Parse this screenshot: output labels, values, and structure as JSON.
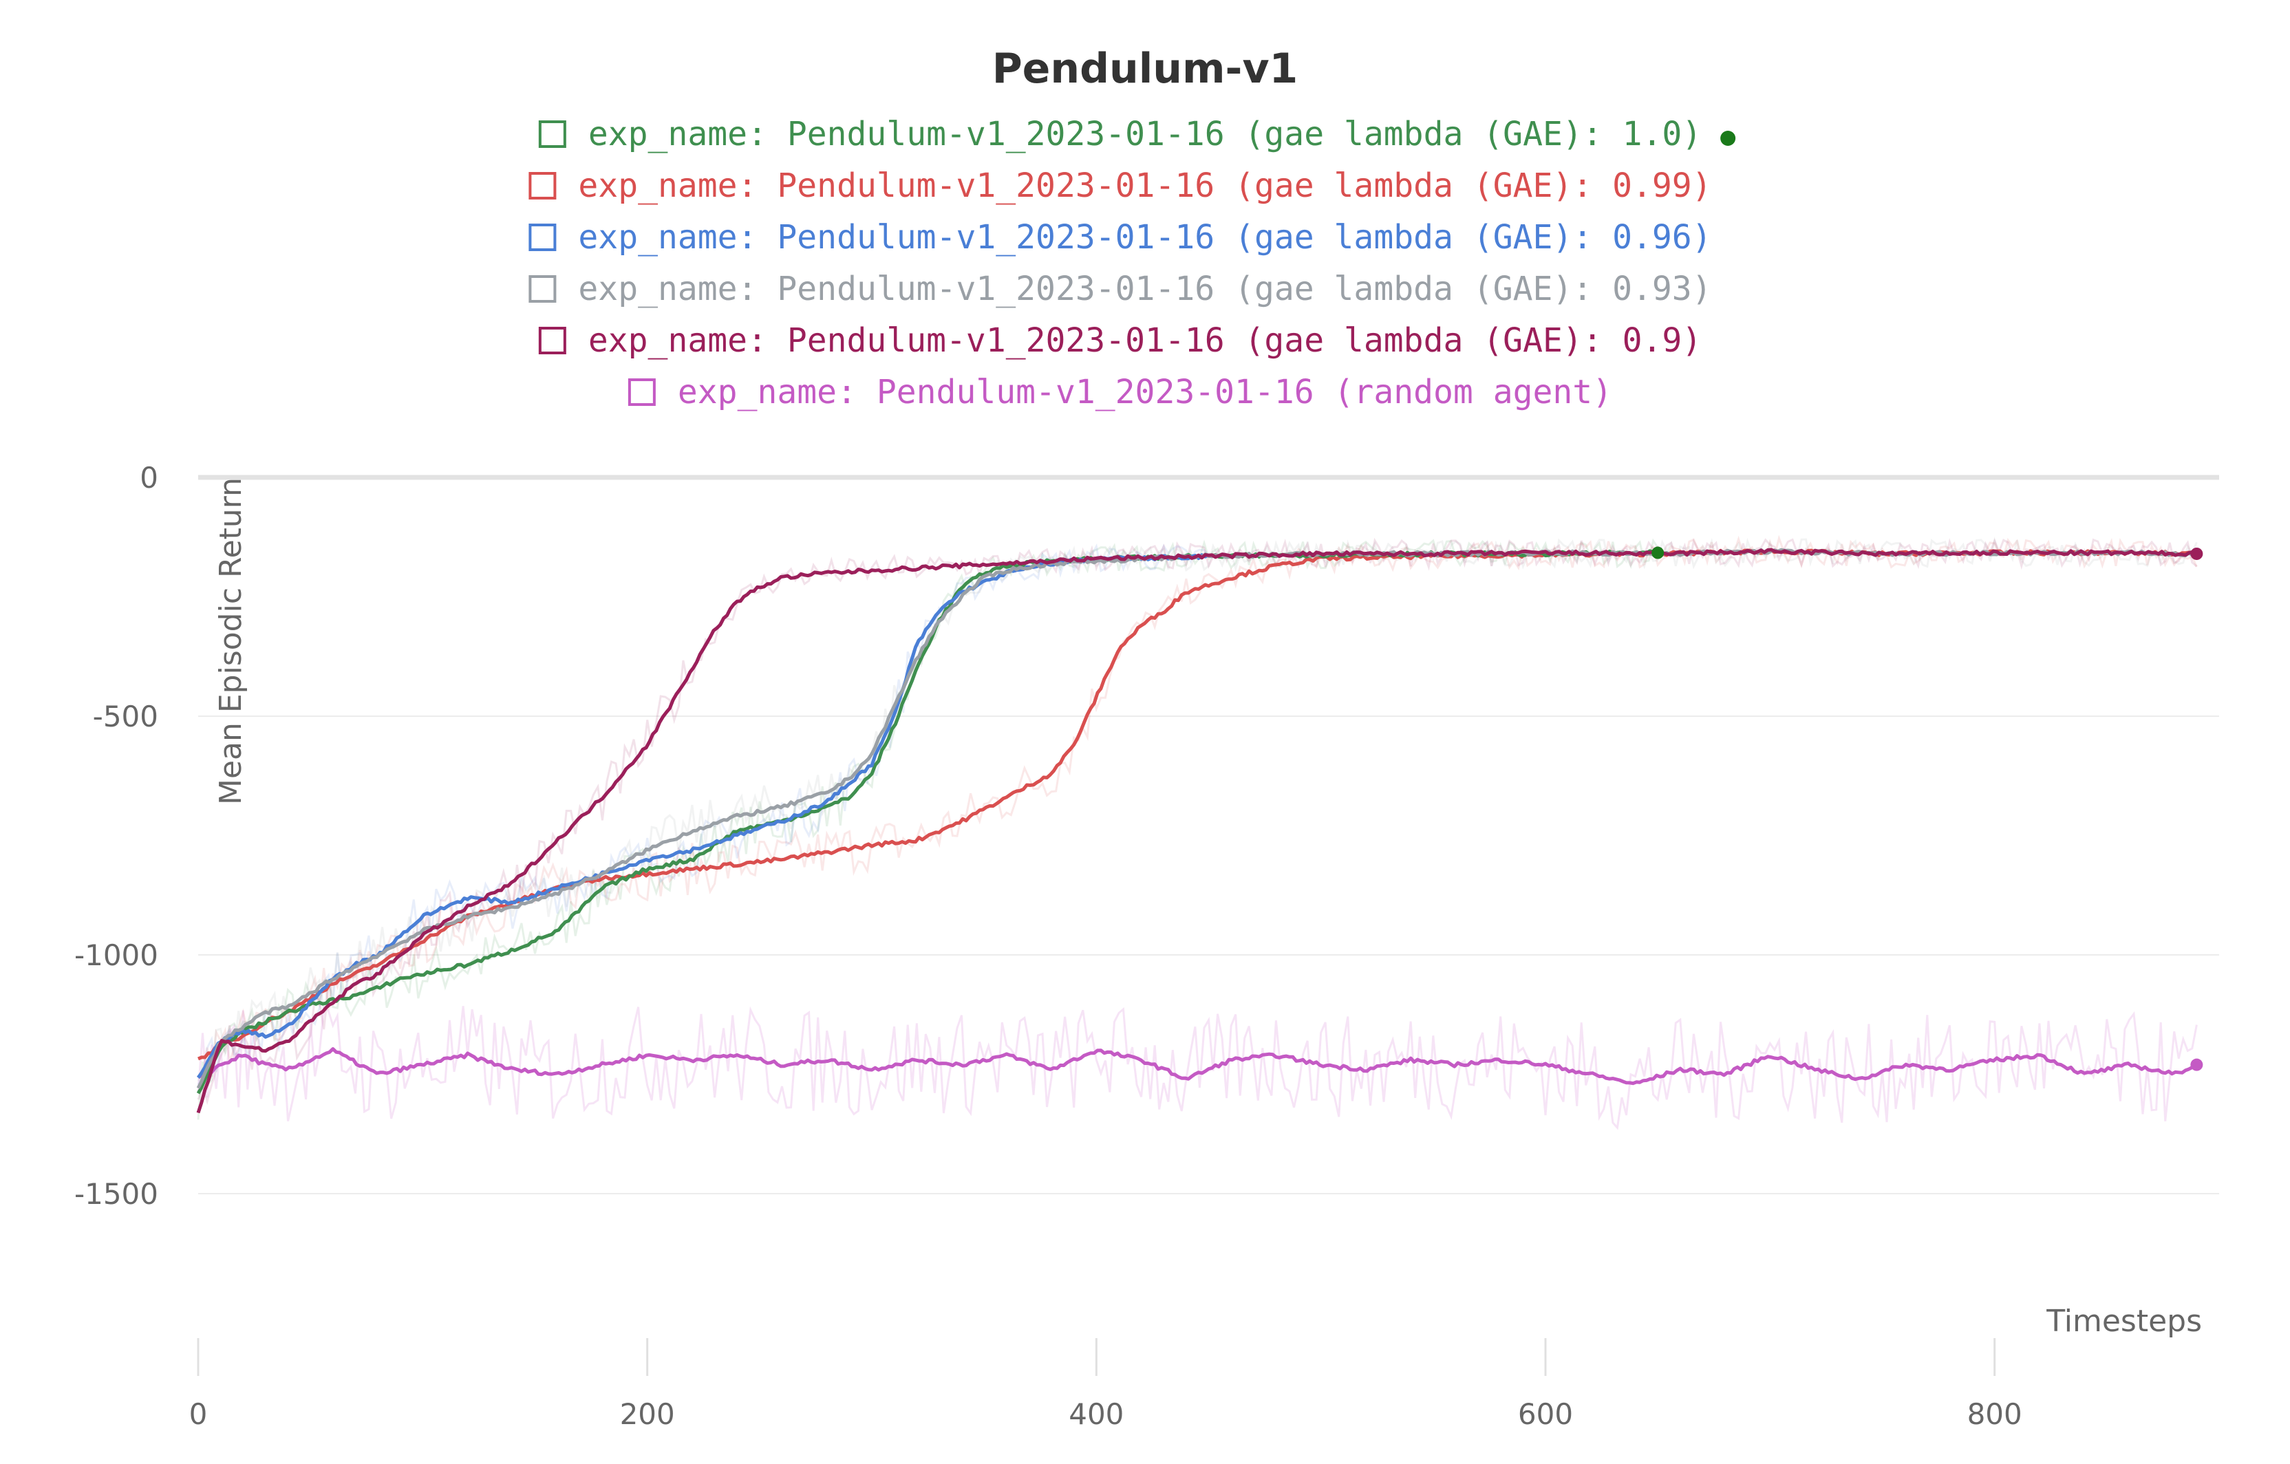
{
  "chart_data": {
    "type": "line",
    "title": "Pendulum-v1",
    "xlabel": "Timesteps",
    "ylabel": "Mean Episodic Return",
    "xlim": [
      0,
      900
    ],
    "ylim": [
      -1680,
      20
    ],
    "xticks": [
      0,
      200,
      400,
      600,
      800
    ],
    "yticks": [
      0,
      -500,
      -1000,
      -1500
    ],
    "grid": true,
    "legend_position": "top-center",
    "series": [
      {
        "name": "exp_name: Pendulum-v1_2023-01-16 (gae lambda (GAE): 1.0)",
        "color": "#3f8f4f",
        "end_marker": "#1a7a1a",
        "x": [
          0,
          10,
          20,
          30,
          40,
          50,
          60,
          70,
          80,
          90,
          100,
          120,
          140,
          160,
          180,
          200,
          220,
          240,
          260,
          280,
          290,
          300,
          310,
          320,
          330,
          340,
          350,
          360,
          380,
          400,
          450,
          500,
          550,
          600,
          650
        ],
        "values": [
          -1290,
          -1190,
          -1160,
          -1140,
          -1120,
          -1105,
          -1095,
          -1085,
          -1070,
          -1050,
          -1040,
          -1020,
          -990,
          -950,
          -860,
          -820,
          -800,
          -740,
          -720,
          -690,
          -670,
          -620,
          -520,
          -400,
          -300,
          -230,
          -200,
          -185,
          -175,
          -170,
          -165,
          -162,
          -160,
          -160,
          -158
        ]
      },
      {
        "name": "exp_name: Pendulum-v1_2023-01-16 (gae lambda (GAE): 0.99)",
        "color": "#d94f4f",
        "x": [
          0,
          10,
          20,
          30,
          40,
          50,
          60,
          80,
          100,
          120,
          140,
          160,
          180,
          200,
          220,
          240,
          260,
          280,
          300,
          320,
          340,
          360,
          380,
          390,
          400,
          410,
          420,
          430,
          440,
          460,
          480,
          500,
          550,
          600,
          650,
          700,
          750,
          800,
          850,
          890
        ],
        "values": [
          -1220,
          -1190,
          -1170,
          -1140,
          -1120,
          -1090,
          -1060,
          -1020,
          -970,
          -920,
          -890,
          -860,
          -840,
          -830,
          -820,
          -810,
          -800,
          -785,
          -770,
          -760,
          -720,
          -670,
          -620,
          -560,
          -460,
          -360,
          -310,
          -280,
          -240,
          -210,
          -185,
          -170,
          -165,
          -162,
          -160,
          -155,
          -160,
          -158,
          -158,
          -160
        ]
      },
      {
        "name": "exp_name: Pendulum-v1_2023-01-16 (gae lambda (GAE): 0.96)",
        "color": "#4a7fd6",
        "x": [
          0,
          10,
          20,
          30,
          40,
          50,
          60,
          70,
          80,
          90,
          100,
          110,
          120,
          140,
          160,
          180,
          200,
          220,
          240,
          260,
          280,
          300,
          310,
          320,
          330,
          340,
          360,
          380,
          400,
          420,
          450
        ],
        "values": [
          -1260,
          -1180,
          -1160,
          -1170,
          -1150,
          -1100,
          -1050,
          -1020,
          -1000,
          -960,
          -920,
          -900,
          -880,
          -890,
          -860,
          -830,
          -800,
          -780,
          -750,
          -720,
          -680,
          -600,
          -500,
          -350,
          -280,
          -240,
          -200,
          -180,
          -170,
          -170,
          -165
        ]
      },
      {
        "name": "exp_name: Pendulum-v1_2023-01-16 (gae lambda (GAE): 0.93)",
        "color": "#9aa0a6",
        "x": [
          0,
          10,
          20,
          30,
          40,
          50,
          60,
          80,
          100,
          120,
          140,
          160,
          180,
          200,
          220,
          240,
          260,
          280,
          290,
          300,
          310,
          320,
          330,
          340,
          350,
          360,
          380,
          400,
          450,
          500,
          550,
          600,
          650,
          700,
          750,
          800,
          850,
          890
        ],
        "values": [
          -1280,
          -1180,
          -1150,
          -1120,
          -1110,
          -1080,
          -1050,
          -1000,
          -950,
          -920,
          -900,
          -870,
          -830,
          -780,
          -740,
          -710,
          -690,
          -660,
          -630,
          -580,
          -480,
          -380,
          -300,
          -250,
          -210,
          -195,
          -180,
          -175,
          -165,
          -160,
          -160,
          -158,
          -160,
          -155,
          -160,
          -158,
          -158,
          -160
        ]
      },
      {
        "name": "exp_name: Pendulum-v1_2023-01-16 (gae lambda (GAE): 0.9)",
        "color": "#9b1f5a",
        "end_marker": "#9b1f5a",
        "x": [
          0,
          10,
          20,
          30,
          40,
          50,
          60,
          70,
          80,
          100,
          120,
          140,
          160,
          180,
          200,
          210,
          220,
          230,
          240,
          250,
          260,
          280,
          300,
          320,
          340,
          360,
          380,
          400,
          450,
          500,
          550,
          600,
          650,
          700,
          750,
          800,
          850,
          890
        ],
        "values": [
          -1330,
          -1180,
          -1190,
          -1200,
          -1180,
          -1140,
          -1100,
          -1060,
          -1040,
          -960,
          -900,
          -850,
          -760,
          -670,
          -560,
          -480,
          -400,
          -320,
          -260,
          -230,
          -210,
          -200,
          -195,
          -190,
          -185,
          -180,
          -175,
          -170,
          -165,
          -160,
          -160,
          -158,
          -160,
          -155,
          -160,
          -158,
          -158,
          -160
        ]
      },
      {
        "name": "exp_name: Pendulum-v1_2023-01-16 (random agent)",
        "color": "#c45ac4",
        "end_marker": "#c45ac4",
        "x": [
          0,
          10,
          20,
          30,
          40,
          50,
          60,
          80,
          100,
          120,
          140,
          160,
          180,
          200,
          220,
          240,
          260,
          280,
          300,
          320,
          340,
          360,
          380,
          400,
          420,
          440,
          460,
          480,
          500,
          520,
          540,
          560,
          580,
          600,
          620,
          640,
          660,
          680,
          700,
          720,
          740,
          760,
          780,
          800,
          820,
          840,
          860,
          880,
          890
        ],
        "values": [
          -1260,
          -1230,
          -1210,
          -1230,
          -1240,
          -1220,
          -1200,
          -1250,
          -1230,
          -1210,
          -1240,
          -1250,
          -1230,
          -1210,
          -1220,
          -1210,
          -1230,
          -1220,
          -1240,
          -1220,
          -1230,
          -1210,
          -1240,
          -1200,
          -1220,
          -1260,
          -1220,
          -1210,
          -1230,
          -1240,
          -1220,
          -1230,
          -1220,
          -1230,
          -1250,
          -1270,
          -1240,
          -1250,
          -1210,
          -1240,
          -1260,
          -1230,
          -1240,
          -1220,
          -1210,
          -1250,
          -1230,
          -1250,
          -1230
        ]
      }
    ]
  }
}
